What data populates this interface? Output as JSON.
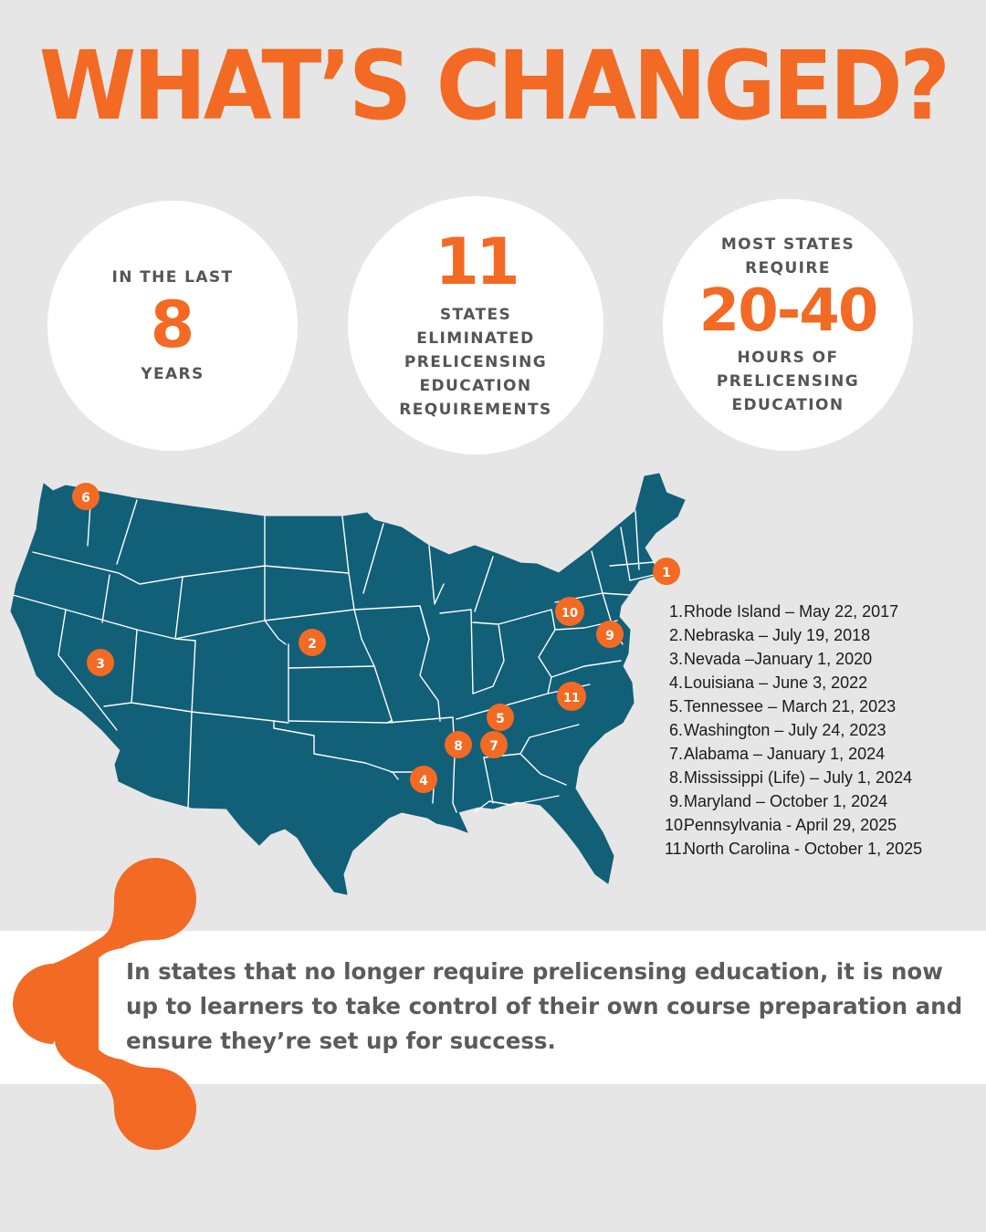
{
  "title": "WHAT’S CHANGED?",
  "stats": [
    {
      "top": "IN THE LAST",
      "big": "8",
      "bottom": "YEARS"
    },
    {
      "big": "11",
      "lines": [
        "STATES",
        "ELIMINATED",
        "PRELICENSING",
        "EDUCATION",
        "REQUIREMENTS"
      ]
    },
    {
      "top_lines": [
        "MOST STATES",
        "REQUIRE"
      ],
      "big": "20-40",
      "bottom_lines": [
        "HOURS OF",
        "PRELICENSING",
        "EDUCATION"
      ]
    }
  ],
  "map": {
    "markers": [
      "1",
      "2",
      "3",
      "4",
      "5",
      "6",
      "7",
      "8",
      "9",
      "10",
      "11"
    ]
  },
  "legend": [
    {
      "num": "1.",
      "text": "Rhode Island – May 22, 2017"
    },
    {
      "num": "2.",
      "text": "Nebraska – July 19, 2018"
    },
    {
      "num": "3.",
      "text": "Nevada –January 1, 2020"
    },
    {
      "num": "4.",
      "text": "Louisiana – June 3, 2022"
    },
    {
      "num": "5.",
      "text": "Tennessee – March 21, 2023"
    },
    {
      "num": "6.",
      "text": "Washington – July 24, 2023"
    },
    {
      "num": "7.",
      "text": "Alabama – January 1, 2024"
    },
    {
      "num": "8.",
      "text": "Mississippi (Life) – July 1, 2024"
    },
    {
      "num": "9.",
      "text": "Maryland – October 1, 2024"
    },
    {
      "num": "10.",
      "text": "Pennsylvania - April 29, 2025"
    },
    {
      "num": "11.",
      "text": "North Carolina - October 1, 2025"
    }
  ],
  "quote": "In states that no longer require prelicensing education, it is now up to learners to take control of their own course preparation and ensure they’re set up for success.",
  "colors": {
    "orange": "#f26a24",
    "map": "#125f78",
    "background": "#e6e6e6",
    "text": "#555555"
  }
}
